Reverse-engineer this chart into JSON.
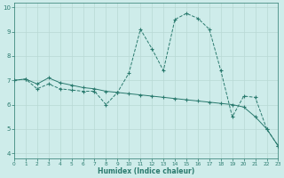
{
  "line1_x": [
    0,
    1,
    2,
    3,
    4,
    5,
    6,
    7,
    8,
    9,
    10,
    11,
    12,
    13,
    14,
    15,
    16,
    17,
    18,
    19,
    20,
    21,
    22,
    23
  ],
  "line1_y": [
    7.0,
    7.05,
    6.65,
    6.85,
    6.65,
    6.6,
    6.55,
    6.55,
    6.0,
    6.5,
    7.3,
    9.1,
    8.3,
    7.4,
    9.5,
    9.75,
    9.55,
    9.1,
    7.4,
    5.5,
    6.35,
    6.3,
    5.0,
    4.3
  ],
  "line2_x": [
    0,
    1,
    2,
    3,
    4,
    5,
    6,
    7,
    8,
    9,
    10,
    11,
    12,
    13,
    14,
    15,
    16,
    17,
    18,
    19,
    20,
    21,
    22,
    23
  ],
  "line2_y": [
    7.0,
    7.05,
    6.85,
    7.1,
    6.9,
    6.8,
    6.7,
    6.65,
    6.55,
    6.5,
    6.45,
    6.4,
    6.35,
    6.3,
    6.25,
    6.2,
    6.15,
    6.1,
    6.05,
    6.0,
    5.9,
    5.5,
    5.0,
    4.3
  ],
  "color": "#2a7a6e",
  "bg_color": "#ceecea",
  "grid_color_major": "#b8d8d4",
  "grid_color_minor": "#d4ecea",
  "xlabel": "Humidex (Indice chaleur)",
  "xlim": [
    0,
    23
  ],
  "ylim": [
    3.8,
    10.2
  ],
  "yticks": [
    4,
    5,
    6,
    7,
    8,
    9,
    10
  ],
  "xticks": [
    0,
    1,
    2,
    3,
    4,
    5,
    6,
    7,
    8,
    9,
    10,
    11,
    12,
    13,
    14,
    15,
    16,
    17,
    18,
    19,
    20,
    21,
    22,
    23
  ]
}
